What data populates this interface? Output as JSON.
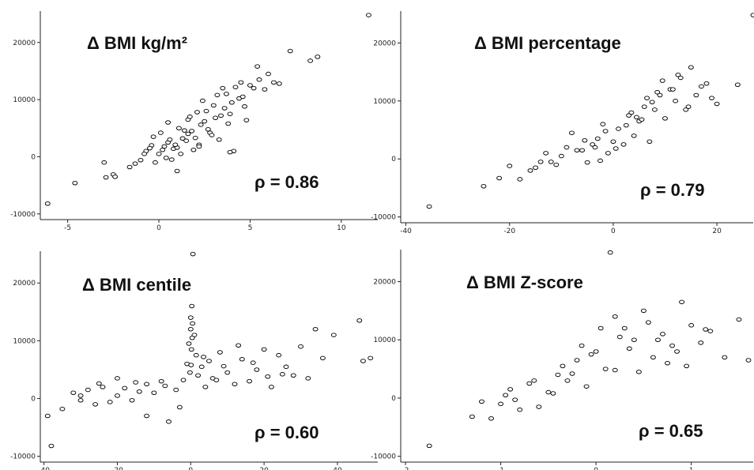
{
  "chart_data": [
    {
      "type": "scatter",
      "title": "Δ BMI kg/m²",
      "annotation": "ρ = 0.86",
      "xlim": [
        -6.5,
        12
      ],
      "ylim": [
        -11000,
        25500
      ],
      "xticks": [
        -5,
        0,
        5,
        10
      ],
      "yticks": [
        -10000,
        0,
        10000,
        20000
      ],
      "x": [
        -6.1,
        -4.6,
        -3.0,
        -2.9,
        -2.5,
        -2.4,
        -1.6,
        -1.0,
        -0.7,
        -0.4,
        -0.2,
        0.0,
        0.1,
        0.3,
        0.4,
        0.5,
        0.6,
        0.8,
        1.0,
        1.1,
        1.2,
        1.3,
        1.5,
        1.6,
        1.8,
        2.0,
        2.1,
        2.2,
        2.3,
        2.5,
        2.6,
        2.8,
        3.0,
        3.1,
        3.2,
        3.4,
        3.6,
        3.7,
        3.9,
        4.0,
        4.2,
        4.4,
        4.5,
        4.7,
        5.0,
        5.2,
        5.5,
        5.8,
        6.0,
        6.3,
        7.2,
        8.3,
        8.7,
        11.5,
        -0.3,
        0.7,
        1.9,
        2.7,
        3.3,
        4.8,
        -0.8,
        0.2,
        1.4,
        2.4,
        3.8,
        4.6,
        5.4,
        6.6,
        -1.3,
        0.9,
        1.7,
        2.9,
        3.5,
        4.1,
        0.5,
        1.0,
        1.6,
        2.2,
        -0.5,
        3.9
      ],
      "y": [
        -8200,
        -4600,
        -1000,
        -3600,
        -3100,
        -3500,
        -1800,
        -600,
        1000,
        2000,
        -1000,
        500,
        4200,
        1800,
        -200,
        2500,
        3000,
        1400,
        1600,
        5000,
        500,
        3200,
        2800,
        6500,
        4500,
        3300,
        7800,
        2100,
        5600,
        6200,
        8000,
        4200,
        9000,
        6800,
        10800,
        7200,
        8500,
        11000,
        7500,
        9500,
        12200,
        10200,
        13000,
        8800,
        12500,
        12000,
        13500,
        11800,
        14500,
        13000,
        18500,
        16800,
        17500,
        24800,
        3500,
        -500,
        1200,
        4800,
        3000,
        6400,
        500,
        1200,
        4600,
        9800,
        5800,
        10500,
        15800,
        12800,
        -1200,
        2100,
        7000,
        3800,
        12000,
        1000,
        6000,
        -2500,
        4000,
        1800,
        1500,
        800
      ]
    },
    {
      "type": "scatter",
      "title": "Δ BMI percentage",
      "annotation": "ρ = 0.79",
      "xlim": [
        -41,
        27
      ],
      "ylim": [
        -11000,
        25500
      ],
      "xticks": [
        -40,
        -20,
        0,
        20
      ],
      "yticks": [
        -10000,
        0,
        10000,
        20000
      ],
      "x": [
        -35.5,
        -25.0,
        -22.0,
        -20.0,
        -18.0,
        -15.0,
        -13.0,
        -11.0,
        -9.0,
        -8.0,
        -6.0,
        -5.0,
        -4.0,
        -3.0,
        -2.0,
        -1.0,
        0.0,
        1.0,
        2.0,
        3.0,
        4.0,
        5.0,
        6.0,
        7.0,
        8.0,
        9.0,
        10.0,
        11.0,
        12.0,
        13.0,
        14.0,
        15.0,
        16.0,
        17.0,
        18.0,
        20.0,
        24.0,
        27.0,
        -12.0,
        -7.0,
        -1.5,
        3.5,
        6.5,
        9.5,
        14.5,
        -16.0,
        -10.0,
        -3.5,
        2.5,
        7.5,
        11.5,
        -5.5,
        0.5,
        5.5,
        12.5,
        -2.5,
        8.5,
        19.0,
        -14.0,
        4.5
      ],
      "y": [
        -8200,
        -4700,
        -3300,
        -1200,
        -3500,
        -1500,
        1000,
        -1000,
        2000,
        4500,
        1500,
        -600,
        2500,
        3500,
        6000,
        1000,
        3000,
        5200,
        2500,
        7500,
        4000,
        6500,
        9000,
        3000,
        8500,
        11000,
        7000,
        12000,
        10000,
        14000,
        8500,
        15800,
        11000,
        12500,
        13000,
        9500,
        12800,
        24800,
        -500,
        1500,
        4800,
        8000,
        10500,
        13500,
        9000,
        -2000,
        500,
        2000,
        5800,
        9800,
        12000,
        3200,
        1800,
        6800,
        14500,
        -300,
        11500,
        10500,
        -500,
        7200
      ]
    },
    {
      "type": "scatter",
      "title": "Δ BMI centile",
      "annotation": "ρ = 0.60",
      "xlim": [
        -41,
        51
      ],
      "ylim": [
        -11000,
        25500
      ],
      "xticks": [
        -40,
        -20,
        0,
        20,
        40
      ],
      "yticks": [
        -10000,
        0,
        10000,
        20000
      ],
      "x": [
        -39.0,
        -38.0,
        -35.0,
        -32.0,
        -30.0,
        -28.0,
        -26.0,
        -24.0,
        -22.0,
        -20.0,
        -18.0,
        -16.0,
        -14.0,
        -12.0,
        -10.0,
        -8.0,
        -6.0,
        -4.0,
        -2.0,
        -1.0,
        -0.5,
        0.0,
        0.3,
        0.6,
        1.0,
        1.5,
        2.0,
        3.0,
        4.0,
        5.0,
        6.0,
        8.0,
        10.0,
        12.0,
        14.0,
        16.0,
        18.0,
        20.0,
        22.0,
        24.0,
        26.0,
        28.0,
        30.0,
        32.0,
        34.0,
        36.0,
        39.0,
        46.0,
        47.0,
        49.0,
        0.0,
        0.2,
        0.4,
        -0.2,
        0.1,
        0.5,
        -3.0,
        -7.0,
        -12.0,
        -15.0,
        3.5,
        7.0,
        9.0,
        13.0,
        17.0,
        21.0,
        25.0,
        -30.0,
        -25.0,
        -20.0
      ],
      "y": [
        -3000,
        -8200,
        -1800,
        1000,
        -300,
        1500,
        -1000,
        2000,
        -600,
        500,
        1800,
        -300,
        1200,
        2500,
        1000,
        3000,
        -4000,
        1500,
        3200,
        6000,
        9500,
        12000,
        16000,
        25000,
        11000,
        7500,
        4000,
        5500,
        2000,
        6500,
        3500,
        8000,
        4500,
        2500,
        6800,
        3000,
        5000,
        8500,
        2000,
        7500,
        5500,
        4000,
        9000,
        3500,
        12000,
        7000,
        11000,
        13500,
        6500,
        7000,
        14000,
        8500,
        10500,
        4500,
        5800,
        13000,
        -1500,
        2200,
        -3000,
        2800,
        7200,
        3200,
        5600,
        9200,
        6200,
        3800,
        4200,
        500,
        2600,
        3500
      ]
    },
    {
      "type": "scatter",
      "title": "Δ BMI Z-score",
      "annotation": "ρ = 0.65",
      "xlim": [
        -2.05,
        1.65
      ],
      "ylim": [
        -11000,
        25500
      ],
      "xticks": [
        -2,
        -1,
        0,
        1
      ],
      "yticks": [
        -10000,
        0,
        10000,
        20000
      ],
      "x": [
        -1.75,
        -1.3,
        -1.2,
        -1.1,
        -1.0,
        -0.9,
        -0.8,
        -0.7,
        -0.6,
        -0.5,
        -0.4,
        -0.3,
        -0.2,
        -0.1,
        0.0,
        0.1,
        0.15,
        0.2,
        0.3,
        0.4,
        0.5,
        0.6,
        0.7,
        0.8,
        0.9,
        1.0,
        1.1,
        1.2,
        1.35,
        1.5,
        1.6,
        -0.65,
        -0.35,
        -0.05,
        0.25,
        0.45,
        0.75,
        -0.85,
        -0.15,
        0.35,
        0.55,
        0.95,
        -0.45,
        0.05,
        0.65,
        -0.25,
        0.85,
        -0.95,
        0.2,
        1.15
      ],
      "y": [
        -8200,
        -3200,
        -600,
        -3500,
        -1000,
        1500,
        -2000,
        2500,
        -1500,
        1000,
        4000,
        3000,
        6500,
        2000,
        8000,
        5000,
        25000,
        14000,
        12000,
        10000,
        15000,
        7000,
        11000,
        9000,
        16500,
        12500,
        9500,
        11500,
        7000,
        13500,
        6500,
        3000,
        5500,
        7500,
        10500,
        4500,
        6000,
        -300,
        9000,
        8500,
        13000,
        5500,
        800,
        12000,
        10000,
        4200,
        8000,
        500,
        4800,
        11800
      ]
    }
  ]
}
